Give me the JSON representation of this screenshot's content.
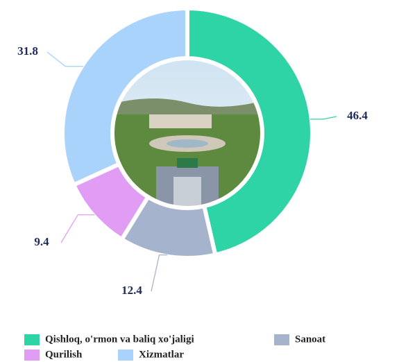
{
  "chart_data": {
    "type": "donut",
    "categories": [
      "Qishloq, o'rmon va baliq xo'jaligi",
      "Sanoat",
      "Qurilish",
      "Xizmatlar"
    ],
    "values": [
      46.4,
      12.4,
      9.4,
      31.8
    ],
    "colors": [
      "#2fd4a6",
      "#a6b3cc",
      "#e19cf4",
      "#a9d3fa"
    ]
  }
}
